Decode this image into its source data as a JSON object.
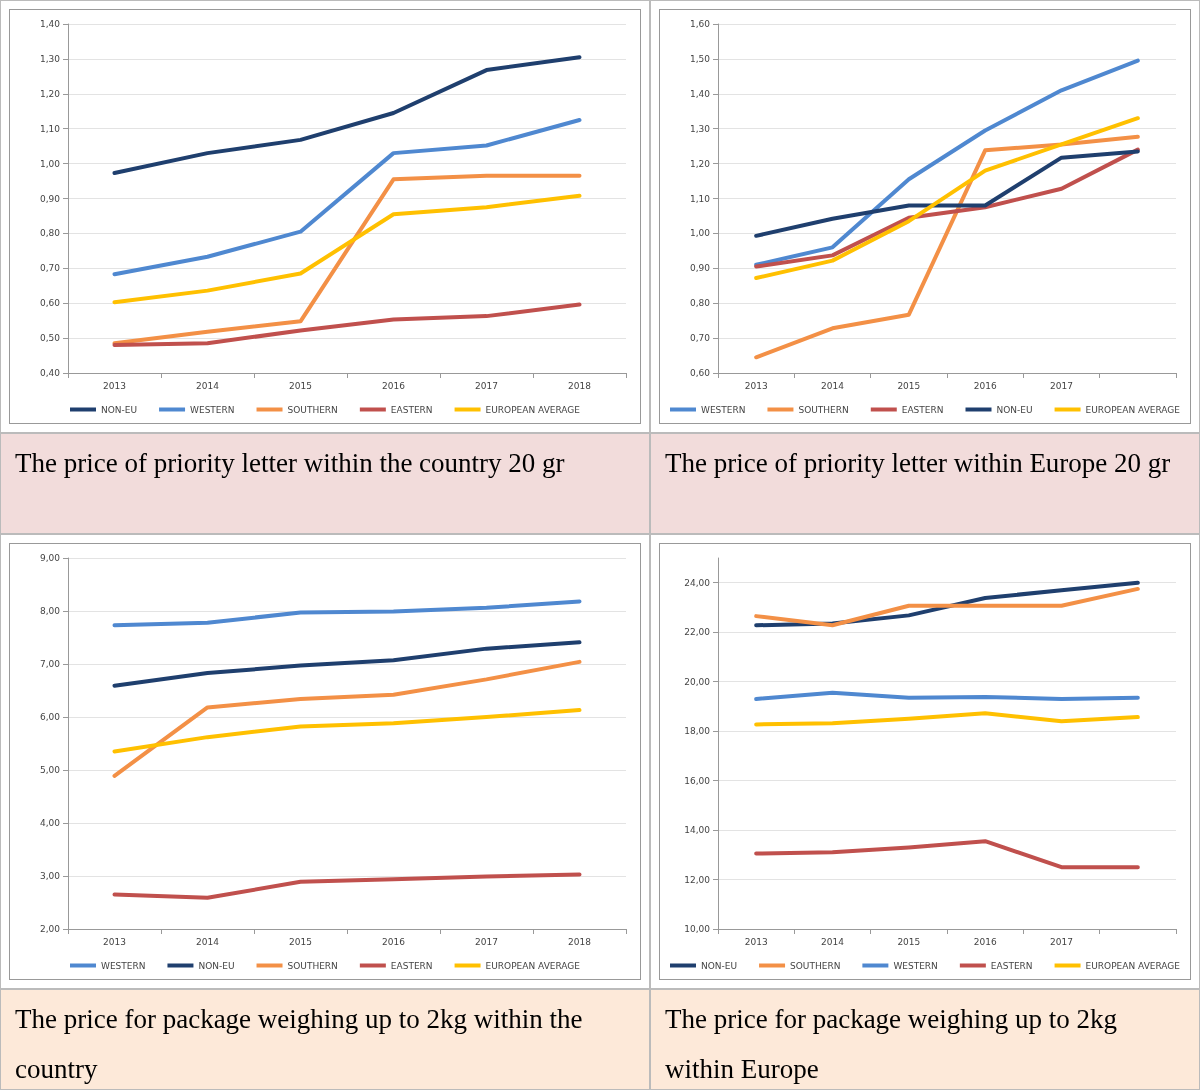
{
  "chart_data": [
    {
      "type": "line",
      "title": "The price of priority letter within the country 20 gr",
      "categories": [
        "2013",
        "2014",
        "2015",
        "2016",
        "2017",
        "2018"
      ],
      "ylim": [
        0.4,
        1.4
      ],
      "yticks": [
        {
          "value": 0.4,
          "label": "0,40"
        },
        {
          "value": 0.5,
          "label": "0,50"
        },
        {
          "value": 0.6,
          "label": "0,60"
        },
        {
          "value": 0.7,
          "label": "0,70"
        },
        {
          "value": 0.8,
          "label": "0,80"
        },
        {
          "value": 0.9,
          "label": "0,90"
        },
        {
          "value": 1.0,
          "label": "1,00"
        },
        {
          "value": 1.1,
          "label": "1,10"
        },
        {
          "value": 1.2,
          "label": "1,20"
        },
        {
          "value": 1.3,
          "label": "1,30"
        },
        {
          "value": 1.4,
          "label": "1,40"
        }
      ],
      "grid": "y",
      "legend": "bottom",
      "marker": "none",
      "series": [
        {
          "name": "NON-EU",
          "color": "#1f3f6e",
          "values": [
            0.973,
            1.03,
            1.068,
            1.145,
            1.268,
            1.305
          ]
        },
        {
          "name": "WESTERN",
          "color": "#4f88d0",
          "values": [
            0.683,
            0.733,
            0.805,
            1.03,
            1.052,
            1.125
          ]
        },
        {
          "name": "SOUTHERN",
          "color": "#f39046",
          "values": [
            0.485,
            0.518,
            0.548,
            0.955,
            0.965,
            0.965
          ]
        },
        {
          "name": "EASTERN",
          "color": "#c0504d",
          "values": [
            0.48,
            0.485,
            0.522,
            0.553,
            0.563,
            0.596
          ]
        },
        {
          "name": "EUROPEAN AVERAGE",
          "color": "#ffc000",
          "values": [
            0.603,
            0.636,
            0.685,
            0.855,
            0.875,
            0.908
          ]
        }
      ]
    },
    {
      "type": "line",
      "title": "The price of priority letter within Europe 20 gr",
      "categories": [
        "2013",
        "2014",
        "2015",
        "2016",
        "2017",
        null
      ],
      "ylim": [
        0.6,
        1.6
      ],
      "yticks": [
        {
          "value": 0.6,
          "label": "0,60"
        },
        {
          "value": 0.7,
          "label": "0,70"
        },
        {
          "value": 0.8,
          "label": "0,80"
        },
        {
          "value": 0.9,
          "label": "0,90"
        },
        {
          "value": 1.0,
          "label": "1,00"
        },
        {
          "value": 1.1,
          "label": "1,10"
        },
        {
          "value": 1.2,
          "label": "1,20"
        },
        {
          "value": 1.3,
          "label": "1,30"
        },
        {
          "value": 1.4,
          "label": "1,40"
        },
        {
          "value": 1.5,
          "label": "1,50"
        },
        {
          "value": 1.6,
          "label": "1,60"
        }
      ],
      "grid": "y",
      "legend": "bottom",
      "marker": "none",
      "series": [
        {
          "name": "WESTERN",
          "color": "#4f88d0",
          "values": [
            0.91,
            0.96,
            1.155,
            1.295,
            1.41,
            1.495
          ]
        },
        {
          "name": "SOUTHERN",
          "color": "#f39046",
          "values": [
            0.645,
            0.728,
            0.767,
            1.238,
            1.255,
            1.277
          ]
        },
        {
          "name": "EASTERN",
          "color": "#c0504d",
          "values": [
            0.905,
            0.937,
            1.045,
            1.075,
            1.128,
            1.24
          ]
        },
        {
          "name": "NON-EU",
          "color": "#1f3f6e",
          "values": [
            0.993,
            1.042,
            1.08,
            1.08,
            1.217,
            1.235
          ]
        },
        {
          "name": "EUROPEAN AVERAGE",
          "color": "#ffc000",
          "values": [
            0.872,
            0.922,
            1.035,
            1.18,
            1.255,
            1.33
          ]
        }
      ]
    },
    {
      "type": "line",
      "title": "The price for package weighing up to 2kg within the country",
      "categories": [
        "2013",
        "2014",
        "2015",
        "2016",
        "2017",
        "2018"
      ],
      "ylim": [
        2,
        9
      ],
      "yticks": [
        {
          "value": 2,
          "label": "2,00"
        },
        {
          "value": 3,
          "label": "3,00"
        },
        {
          "value": 4,
          "label": "4,00"
        },
        {
          "value": 5,
          "label": "5,00"
        },
        {
          "value": 6,
          "label": "6,00"
        },
        {
          "value": 7,
          "label": "7,00"
        },
        {
          "value": 8,
          "label": "8,00"
        },
        {
          "value": 9,
          "label": "9,00"
        }
      ],
      "grid": "y",
      "legend": "bottom",
      "marker": "none",
      "series": [
        {
          "name": "WESTERN",
          "color": "#4f88d0",
          "values": [
            7.73,
            7.78,
            7.97,
            7.99,
            8.06,
            8.18
          ]
        },
        {
          "name": "NON-EU",
          "color": "#1f3f6e",
          "values": [
            6.59,
            6.83,
            6.97,
            7.07,
            7.29,
            7.41
          ]
        },
        {
          "name": "SOUTHERN",
          "color": "#f39046",
          "values": [
            4.89,
            6.18,
            6.34,
            6.42,
            6.71,
            7.04
          ]
        },
        {
          "name": "EASTERN",
          "color": "#c0504d",
          "values": [
            2.65,
            2.59,
            2.89,
            2.94,
            2.99,
            3.03
          ]
        },
        {
          "name": "EUROPEAN AVERAGE",
          "color": "#ffc000",
          "values": [
            5.35,
            5.62,
            5.82,
            5.88,
            6.0,
            6.13
          ]
        }
      ]
    },
    {
      "type": "line",
      "title": "The price for package weighing up to 2kg within Europe",
      "categories": [
        "2013",
        "2014",
        "2015",
        "2016",
        "2017",
        null
      ],
      "ylim": [
        10,
        25
      ],
      "yticks": [
        {
          "value": 10,
          "label": "10,00"
        },
        {
          "value": 12,
          "label": "12,00"
        },
        {
          "value": 14,
          "label": "14,00"
        },
        {
          "value": 16,
          "label": "16,00"
        },
        {
          "value": 18,
          "label": "18,00"
        },
        {
          "value": 20,
          "label": "20,00"
        },
        {
          "value": 22,
          "label": "22,00"
        },
        {
          "value": 24,
          "label": "24,00"
        }
      ],
      "grid": "y",
      "legend": "bottom",
      "marker": "none",
      "series": [
        {
          "name": "NON-EU",
          "color": "#1f3f6e",
          "values": [
            22.28,
            22.35,
            22.68,
            23.38,
            23.7,
            24.0
          ]
        },
        {
          "name": "SOUTHERN",
          "color": "#f39046",
          "values": [
            22.65,
            22.28,
            23.07,
            23.07,
            23.07,
            23.75
          ]
        },
        {
          "name": "WESTERN",
          "color": "#4f88d0",
          "values": [
            19.3,
            19.55,
            19.35,
            19.38,
            19.3,
            19.35
          ]
        },
        {
          "name": "EASTERN",
          "color": "#c0504d",
          "values": [
            13.05,
            13.1,
            13.3,
            13.55,
            12.5,
            12.5
          ]
        },
        {
          "name": "EUROPEAN AVERAGE",
          "color": "#ffc000",
          "values": [
            18.27,
            18.32,
            18.5,
            18.72,
            18.4,
            18.57
          ]
        }
      ]
    }
  ]
}
